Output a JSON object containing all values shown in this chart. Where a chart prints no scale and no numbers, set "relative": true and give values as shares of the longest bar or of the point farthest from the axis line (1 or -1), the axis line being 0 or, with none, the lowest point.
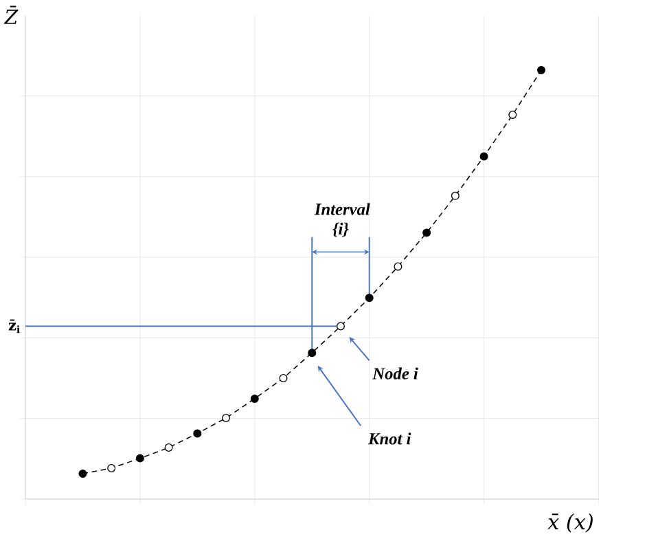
{
  "chart_data": {
    "type": "line",
    "relative": true,
    "xlabel": "x̄ (x)",
    "ylabel": "Z̄",
    "grid": true,
    "marker": "circle",
    "line_style": "dashed",
    "categories": [
      null,
      null,
      null,
      null,
      null,
      null,
      null,
      null,
      null,
      null,
      null,
      null,
      null,
      null,
      null,
      null,
      null
    ],
    "series": [
      {
        "color": "#000000",
        "colors": [
          "#000000",
          "#ffffff",
          "#000000",
          "#ffffff",
          "#000000",
          "#ffffff",
          "#000000",
          "#ffffff",
          "#000000",
          "#ffffff",
          "#000000",
          "#ffffff",
          "#000000",
          "#ffffff",
          "#000000",
          "#ffffff",
          "#000000"
        ],
        "values": [
          0.059,
          0.072,
          0.095,
          0.12,
          0.153,
          0.189,
          0.234,
          0.282,
          0.341,
          0.403,
          0.469,
          0.542,
          0.621,
          0.707,
          0.799,
          0.896,
          1.0
        ]
      }
    ],
    "annotations": [
      "Interval {i}",
      "Node i",
      "Knot i",
      "z̄$_{i}$"
    ]
  }
}
